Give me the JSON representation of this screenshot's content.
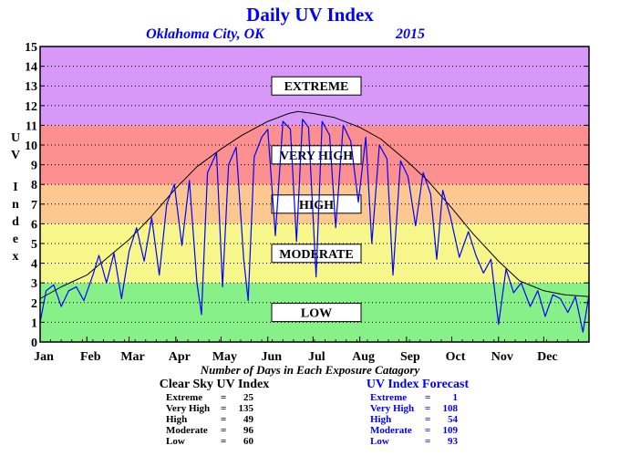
{
  "chart_data": {
    "type": "line",
    "title": "Daily UV Index",
    "location": "Oklahoma City, OK",
    "year": "2015",
    "ylabel": "UV Index",
    "xlabel": "Number of Days in Each Exposure Catagory",
    "ylim": [
      0,
      15
    ],
    "yticks": [
      0,
      1,
      2,
      3,
      4,
      5,
      6,
      7,
      8,
      9,
      10,
      11,
      12,
      13,
      14,
      15
    ],
    "months": [
      "Jan",
      "Feb",
      "Mar",
      "Apr",
      "May",
      "Jun",
      "Jul",
      "Aug",
      "Sep",
      "Oct",
      "Nov",
      "Dec"
    ],
    "grid": "dotted horizontal",
    "bands": [
      {
        "label": "LOW",
        "from": 0,
        "to": 3,
        "color": "#88f088"
      },
      {
        "label": "MODERATE",
        "from": 3,
        "to": 6,
        "color": "#f6f68a"
      },
      {
        "label": "HIGH",
        "from": 6,
        "to": 8,
        "color": "#fcc890"
      },
      {
        "label": "VERY HIGH",
        "from": 8,
        "to": 11,
        "color": "#fc9090"
      },
      {
        "label": "EXTREME",
        "from": 11,
        "to": 15,
        "color": "#d898f8"
      }
    ],
    "series": [
      {
        "color": "#000000",
        "style": "clear-sky",
        "points": [
          [
            1,
            2.2
          ],
          [
            15,
            2.8
          ],
          [
            32,
            3.4
          ],
          [
            46,
            4.3
          ],
          [
            60,
            5.2
          ],
          [
            74,
            6.3
          ],
          [
            91,
            7.8
          ],
          [
            105,
            8.9
          ],
          [
            121,
            9.8
          ],
          [
            135,
            10.5
          ],
          [
            152,
            11.2
          ],
          [
            166,
            11.6
          ],
          [
            172,
            11.7
          ],
          [
            182,
            11.6
          ],
          [
            196,
            11.4
          ],
          [
            213,
            10.9
          ],
          [
            227,
            10.3
          ],
          [
            244,
            9.2
          ],
          [
            258,
            8.2
          ],
          [
            274,
            6.8
          ],
          [
            288,
            5.5
          ],
          [
            305,
            4.1
          ],
          [
            319,
            3.1
          ],
          [
            335,
            2.6
          ],
          [
            349,
            2.4
          ],
          [
            365,
            2.3
          ]
        ]
      },
      {
        "color": "#0000ff",
        "style": "forecast",
        "points": [
          [
            1,
            1.0
          ],
          [
            5,
            2.6
          ],
          [
            10,
            2.9
          ],
          [
            15,
            1.8
          ],
          [
            20,
            2.6
          ],
          [
            25,
            2.8
          ],
          [
            30,
            2.1
          ],
          [
            36,
            3.4
          ],
          [
            40,
            4.4
          ],
          [
            45,
            3.0
          ],
          [
            50,
            4.5
          ],
          [
            55,
            2.2
          ],
          [
            60,
            4.6
          ],
          [
            65,
            5.8
          ],
          [
            70,
            4.1
          ],
          [
            75,
            6.3
          ],
          [
            80,
            3.4
          ],
          [
            85,
            7.0
          ],
          [
            90,
            8.0
          ],
          [
            95,
            4.9
          ],
          [
            100,
            8.2
          ],
          [
            105,
            3.0
          ],
          [
            108,
            1.4
          ],
          [
            112,
            8.6
          ],
          [
            118,
            9.6
          ],
          [
            122,
            2.8
          ],
          [
            126,
            9.0
          ],
          [
            131,
            9.9
          ],
          [
            136,
            4.2
          ],
          [
            139,
            2.1
          ],
          [
            143,
            9.4
          ],
          [
            148,
            10.4
          ],
          [
            152,
            10.8
          ],
          [
            157,
            5.4
          ],
          [
            162,
            11.2
          ],
          [
            167,
            10.8
          ],
          [
            171,
            5.1
          ],
          [
            175,
            11.3
          ],
          [
            179,
            10.9
          ],
          [
            184,
            3.3
          ],
          [
            188,
            11.2
          ],
          [
            193,
            10.5
          ],
          [
            197,
            5.8
          ],
          [
            202,
            11.0
          ],
          [
            207,
            10.2
          ],
          [
            212,
            7.1
          ],
          [
            217,
            10.4
          ],
          [
            221,
            5.0
          ],
          [
            226,
            10.0
          ],
          [
            231,
            9.3
          ],
          [
            235,
            3.4
          ],
          [
            240,
            9.2
          ],
          [
            245,
            8.4
          ],
          [
            250,
            5.9
          ],
          [
            255,
            8.6
          ],
          [
            260,
            7.5
          ],
          [
            264,
            4.2
          ],
          [
            268,
            7.7
          ],
          [
            273,
            6.4
          ],
          [
            279,
            4.3
          ],
          [
            285,
            5.6
          ],
          [
            290,
            4.4
          ],
          [
            295,
            3.5
          ],
          [
            300,
            4.2
          ],
          [
            305,
            0.9
          ],
          [
            310,
            3.7
          ],
          [
            315,
            2.5
          ],
          [
            320,
            3.0
          ],
          [
            326,
            1.8
          ],
          [
            331,
            2.6
          ],
          [
            336,
            1.3
          ],
          [
            341,
            2.4
          ],
          [
            346,
            2.2
          ],
          [
            351,
            1.5
          ],
          [
            356,
            2.3
          ],
          [
            361,
            0.5
          ],
          [
            365,
            2.4
          ]
        ]
      }
    ],
    "clear_sky_stats": {
      "title": "Clear Sky UV Index",
      "rows": [
        {
          "label": "Extreme",
          "value": "25"
        },
        {
          "label": "Very High",
          "value": "135"
        },
        {
          "label": "High",
          "value": "49"
        },
        {
          "label": "Moderate",
          "value": "96"
        },
        {
          "label": "Low",
          "value": "60"
        }
      ]
    },
    "forecast_stats": {
      "title": "UV Index Forecast",
      "rows": [
        {
          "label": "Extreme",
          "value": "1"
        },
        {
          "label": "Very High",
          "value": "108"
        },
        {
          "label": "High",
          "value": "54"
        },
        {
          "label": "Moderate",
          "value": "109"
        },
        {
          "label": "Low",
          "value": "93"
        }
      ]
    }
  }
}
